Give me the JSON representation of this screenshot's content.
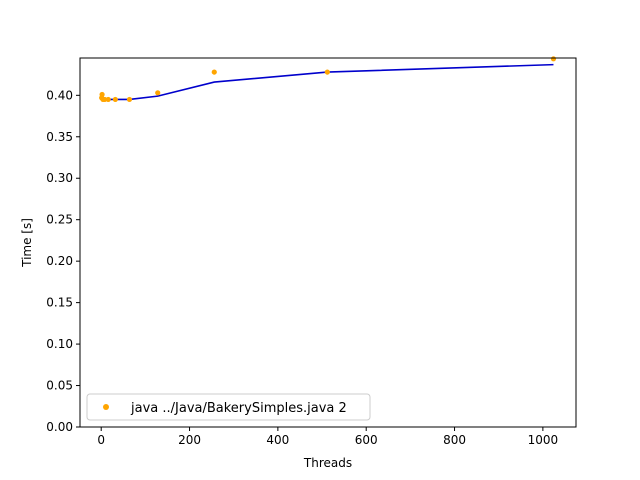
{
  "chart_data": {
    "type": "scatter",
    "xlabel": "Threads",
    "ylabel": "Time [s]",
    "xlim": [
      -48,
      1075
    ],
    "ylim": [
      0,
      0.445
    ],
    "xticks": [
      0,
      200,
      400,
      600,
      800,
      1000
    ],
    "yticks": [
      0.0,
      0.05,
      0.1,
      0.15,
      0.2,
      0.25,
      0.3,
      0.35,
      0.4
    ],
    "xtick_labels": [
      "0",
      "200",
      "400",
      "600",
      "800",
      "1000"
    ],
    "ytick_labels": [
      "0.00",
      "0.05",
      "0.10",
      "0.15",
      "0.20",
      "0.25",
      "0.30",
      "0.35",
      "0.40"
    ],
    "grid": false,
    "legend_position": "lower-left",
    "series": [
      {
        "name": "java ../Java/BakerySimples.java 2",
        "kind": "scatter",
        "color": "#ffa500",
        "x": [
          1,
          2,
          4,
          8,
          16,
          32,
          64,
          128,
          256,
          512,
          1024
        ],
        "y": [
          0.397,
          0.401,
          0.395,
          0.395,
          0.395,
          0.395,
          0.395,
          0.403,
          0.428,
          0.428,
          0.444
        ]
      },
      {
        "kind": "line",
        "color": "#0000cc",
        "x": [
          1,
          2,
          4,
          8,
          16,
          32,
          64,
          128,
          256,
          512,
          1024
        ],
        "y": [
          0.398,
          0.397,
          0.396,
          0.395,
          0.395,
          0.395,
          0.395,
          0.399,
          0.416,
          0.428,
          0.437
        ]
      }
    ]
  }
}
